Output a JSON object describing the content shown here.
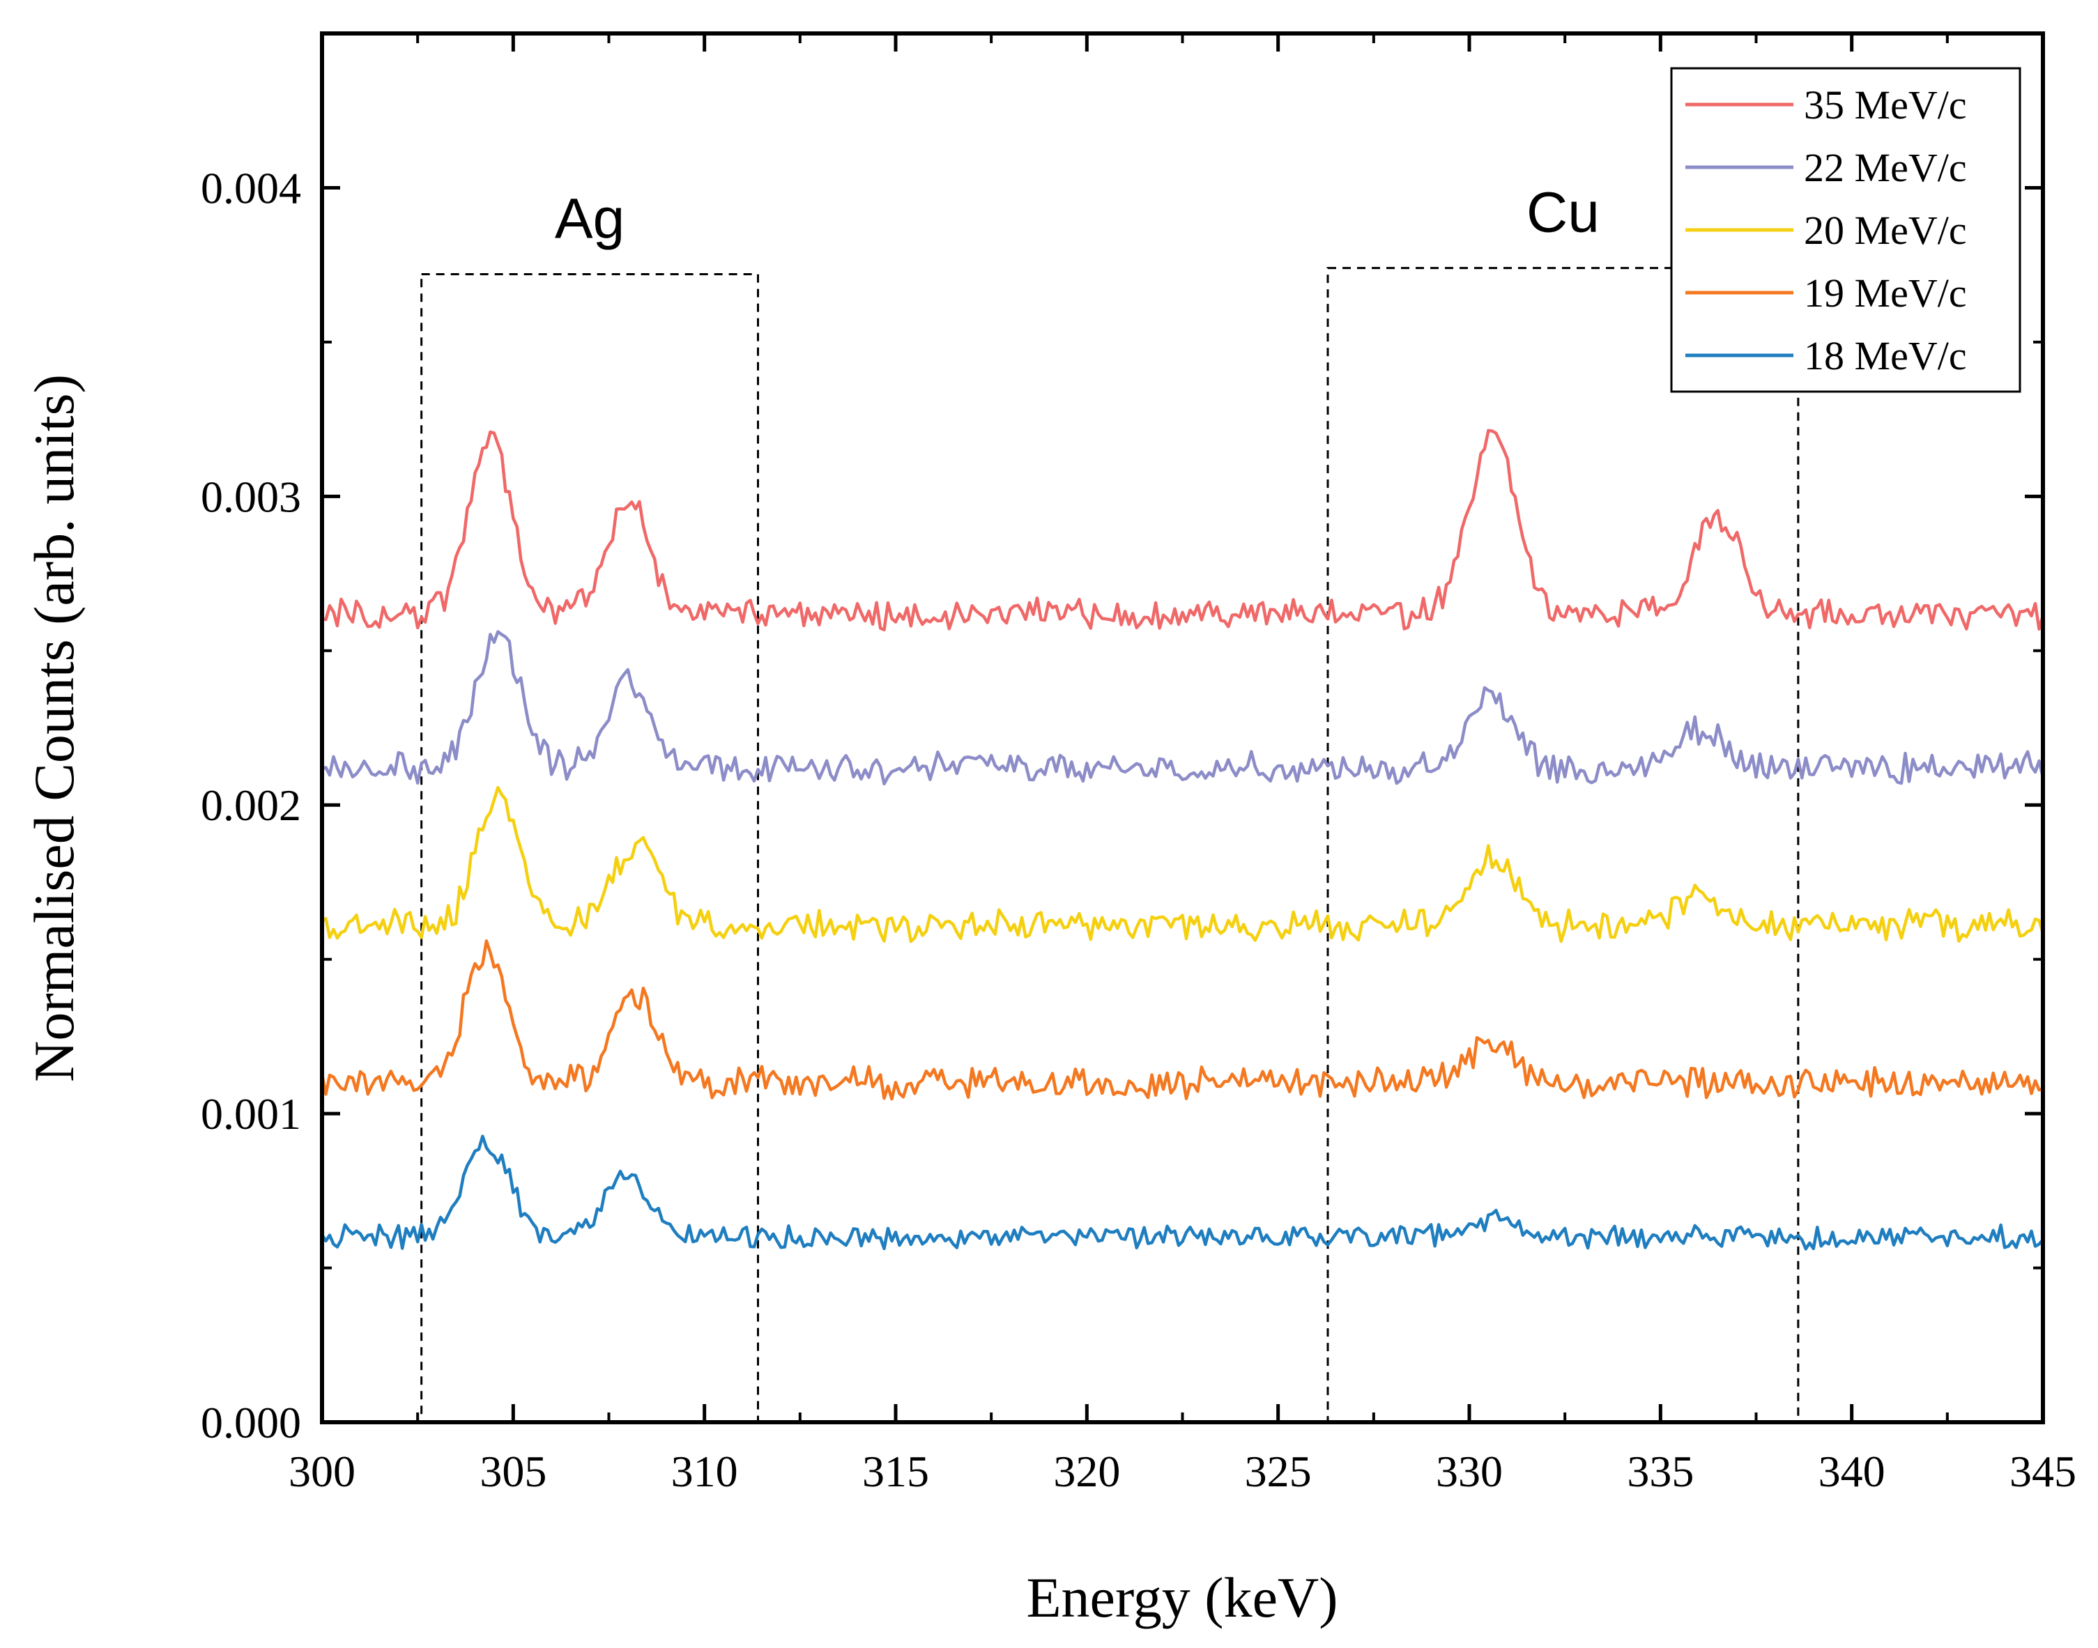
{
  "chart_data": {
    "type": "line",
    "xlabel": "Energy (keV)",
    "ylabel": "Normalised Counts (arb. units)",
    "xlim": [
      300,
      345
    ],
    "ylim": [
      0,
      0.0045
    ],
    "xticks": [
      300,
      305,
      310,
      315,
      320,
      325,
      330,
      335,
      340,
      345
    ],
    "xtick_labels": [
      "300",
      "305",
      "310",
      "315",
      "320",
      "325",
      "330",
      "335",
      "340",
      "345"
    ],
    "yticks": [
      0,
      0.001,
      0.002,
      0.003,
      0.004
    ],
    "ytick_labels": [
      "0.000",
      "0.001",
      "0.002",
      "0.003",
      "0.004"
    ],
    "grid": false,
    "legend_position": "top-right",
    "regions": [
      {
        "label": "Ag",
        "x_range": [
          302.6,
          311.4
        ],
        "y_range": [
          0,
          0.00372
        ]
      },
      {
        "label": "Cu",
        "x_range": [
          326.3,
          338.6
        ],
        "y_range": [
          0,
          0.00374
        ]
      }
    ],
    "series": [
      {
        "name": "35 MeV/c",
        "color": "#f06868",
        "baseline": 0.00262,
        "noise": 4e-05,
        "peaks": [
          {
            "x": 304.4,
            "height": 0.00058,
            "width": 0.55
          },
          {
            "x": 308.0,
            "height": 0.00037,
            "width": 0.55
          },
          {
            "x": 330.6,
            "height": 0.00058,
            "width": 0.6
          },
          {
            "x": 336.5,
            "height": 0.00032,
            "width": 0.6
          }
        ]
      },
      {
        "name": "22 MeV/c",
        "color": "#8c8cc8",
        "baseline": 0.00212,
        "noise": 4e-05,
        "peaks": [
          {
            "x": 304.6,
            "height": 0.00042,
            "width": 0.6
          },
          {
            "x": 308.0,
            "height": 0.00029,
            "width": 0.55
          },
          {
            "x": 330.5,
            "height": 0.00022,
            "width": 0.6
          },
          {
            "x": 336.0,
            "height": 0.00013,
            "width": 0.6
          }
        ]
      },
      {
        "name": "20 MeV/c",
        "color": "#f5d010",
        "baseline": 0.00161,
        "noise": 4e-05,
        "peaks": [
          {
            "x": 304.6,
            "height": 0.00041,
            "width": 0.55
          },
          {
            "x": 308.2,
            "height": 0.00026,
            "width": 0.6
          },
          {
            "x": 330.6,
            "height": 0.00022,
            "width": 0.6
          },
          {
            "x": 336.0,
            "height": 9e-05,
            "width": 0.6
          }
        ]
      },
      {
        "name": "19 MeV/c",
        "color": "#f47820",
        "baseline": 0.0011,
        "noise": 4e-05,
        "peaks": [
          {
            "x": 304.3,
            "height": 0.00042,
            "width": 0.55
          },
          {
            "x": 308.2,
            "height": 0.00028,
            "width": 0.6
          },
          {
            "x": 330.6,
            "height": 0.00012,
            "width": 0.6
          }
        ]
      },
      {
        "name": "18 MeV/c",
        "color": "#1f7ec0",
        "baseline": 0.0006,
        "noise": 3e-05,
        "peaks": [
          {
            "x": 304.3,
            "height": 0.00031,
            "width": 0.6
          },
          {
            "x": 308.0,
            "height": 0.0002,
            "width": 0.55
          },
          {
            "x": 330.5,
            "height": 5e-05,
            "width": 0.6
          }
        ]
      }
    ]
  }
}
